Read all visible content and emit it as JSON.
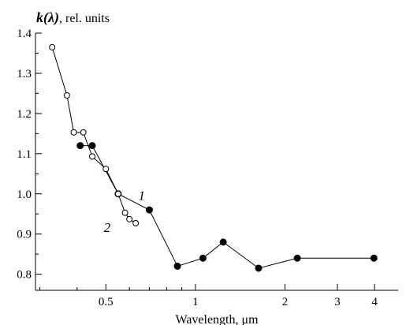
{
  "chart_data": {
    "type": "scatter",
    "ylabel": {
      "symbol": "k(λ)",
      "rest": ", rel. units"
    },
    "xlabel": "Wavelength, μm",
    "x_scale": "log",
    "xlim": [
      0.29,
      4.8
    ],
    "ylim": [
      0.76,
      1.4
    ],
    "x_ticks": [
      {
        "value": 0.5,
        "label": "0.5"
      },
      {
        "value": 1,
        "label": "1"
      },
      {
        "value": 2,
        "label": "2"
      },
      {
        "value": 3,
        "label": "3"
      },
      {
        "value": 4,
        "label": "4"
      }
    ],
    "x_minor_ticks": [
      0.3,
      0.4,
      0.6,
      0.7,
      0.8,
      0.9
    ],
    "y_ticks": [
      {
        "value": 0.8,
        "label": "0.8"
      },
      {
        "value": 0.9,
        "label": "0.9"
      },
      {
        "value": 1.0,
        "label": "1.0"
      },
      {
        "value": 1.1,
        "label": "1.1"
      },
      {
        "value": 1.2,
        "label": "1.2"
      },
      {
        "value": 1.3,
        "label": "1.3"
      },
      {
        "value": 1.4,
        "label": "1.4"
      }
    ],
    "y_minor_ticks": [
      0.85,
      0.95,
      1.05,
      1.15,
      1.25,
      1.35
    ],
    "series": [
      {
        "label": "1",
        "marker": "filled-circle",
        "connected": true,
        "label_anchor": {
          "x": 0.66,
          "y": 0.985
        },
        "x": [
          0.41,
          0.45,
          0.55,
          0.7,
          0.87,
          1.06,
          1.24,
          1.63,
          2.2,
          3.98
        ],
        "y": [
          1.12,
          1.12,
          1.0,
          0.96,
          0.82,
          0.84,
          0.88,
          0.815,
          0.84,
          0.84
        ]
      },
      {
        "label": "2",
        "marker": "open-circle",
        "connected": true,
        "label_anchor": {
          "x": 0.505,
          "y": 0.905
        },
        "x": [
          0.33,
          0.37,
          0.39,
          0.42,
          0.45,
          0.5,
          0.55,
          0.58,
          0.6,
          0.63
        ],
        "y": [
          1.365,
          1.245,
          1.153,
          1.153,
          1.093,
          1.062,
          1.0,
          0.953,
          0.937,
          0.927
        ]
      }
    ]
  }
}
